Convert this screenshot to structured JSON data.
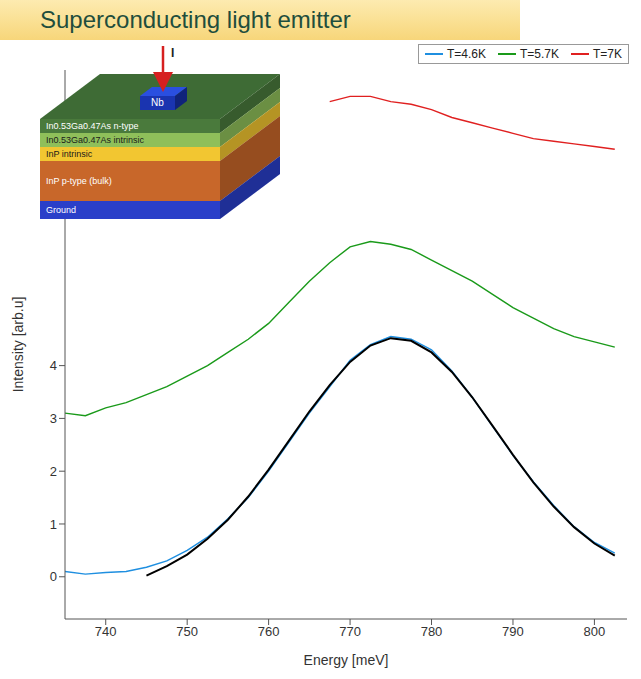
{
  "title": "Superconducting light emitter",
  "chart_data": {
    "type": "line",
    "x_label": "Energy [meV]",
    "y_label": "Intensity [arb.u]",
    "x": [
      735,
      737.5,
      740,
      742.5,
      745,
      747.5,
      750,
      752.5,
      755,
      757.5,
      760,
      762.5,
      765,
      767.5,
      770,
      772.5,
      775,
      777.5,
      780,
      782.5,
      785,
      787.5,
      790,
      792.5,
      795,
      797.5,
      800,
      802.5
    ],
    "xlim": [
      735,
      804
    ],
    "xticks": [
      740,
      750,
      760,
      770,
      780,
      790,
      800
    ],
    "ylim": [
      -0.8,
      9.6
    ],
    "yticks": [
      0,
      1,
      2,
      3,
      4
    ],
    "legend": "top right",
    "series": [
      {
        "name": "T=4.6K",
        "color": "#1f8fe0",
        "values": [
          0.1,
          0.05,
          0.08,
          0.1,
          0.18,
          0.3,
          0.5,
          0.75,
          1.1,
          1.5,
          2.0,
          2.55,
          3.1,
          3.6,
          4.1,
          4.4,
          4.55,
          4.5,
          4.3,
          3.9,
          3.4,
          2.85,
          2.3,
          1.8,
          1.35,
          0.95,
          0.65,
          0.45
        ]
      },
      {
        "name": "T=5.7K",
        "color": "#1a9a1a",
        "values": [
          3.1,
          3.05,
          3.2,
          3.3,
          3.45,
          3.6,
          3.8,
          4.0,
          4.25,
          4.5,
          4.8,
          5.2,
          5.6,
          5.95,
          6.25,
          6.35,
          6.3,
          6.2,
          6.0,
          5.8,
          5.6,
          5.35,
          5.1,
          4.9,
          4.7,
          4.55,
          4.45,
          4.35
        ]
      },
      {
        "name": "T=7K",
        "color": "#e02020",
        "values": [
          null,
          null,
          null,
          null,
          null,
          null,
          null,
          null,
          null,
          null,
          null,
          null,
          null,
          9.0,
          9.1,
          9.1,
          9.0,
          8.95,
          8.85,
          8.7,
          8.6,
          8.5,
          8.4,
          8.3,
          8.25,
          8.2,
          8.15,
          8.1
        ]
      },
      {
        "color": "#000000",
        "values": [
          null,
          null,
          null,
          null,
          0.02,
          0.2,
          0.42,
          0.72,
          1.08,
          1.52,
          2.03,
          2.58,
          3.13,
          3.63,
          4.07,
          4.38,
          4.52,
          4.47,
          4.25,
          3.88,
          3.4,
          2.86,
          2.31,
          1.79,
          1.33,
          0.94,
          0.63,
          0.4
        ]
      }
    ]
  },
  "inset": {
    "current": "I",
    "contact": "Nb",
    "layers": [
      "In0.53Ga0.47As n-type",
      "In0.53Ga0.47As intrinsic",
      "InP intrinsic",
      "InP p-type (bulk)",
      "Ground"
    ]
  }
}
